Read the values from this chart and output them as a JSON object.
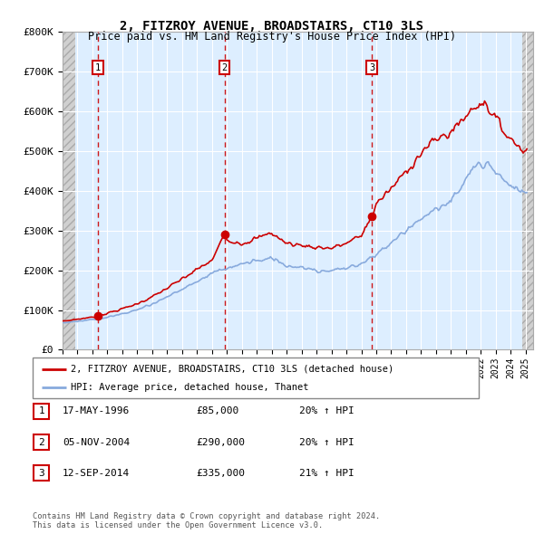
{
  "title": "2, FITZROY AVENUE, BROADSTAIRS, CT10 3LS",
  "subtitle": "Price paid vs. HM Land Registry's House Price Index (HPI)",
  "ylim": [
    0,
    800000
  ],
  "yticks": [
    0,
    100000,
    200000,
    300000,
    400000,
    500000,
    600000,
    700000,
    800000
  ],
  "ytick_labels": [
    "£0",
    "£100K",
    "£200K",
    "£300K",
    "£400K",
    "£500K",
    "£600K",
    "£700K",
    "£800K"
  ],
  "sale_year_floats": [
    1996.37,
    2004.84,
    2014.7
  ],
  "sale_prices": [
    85000,
    290000,
    335000
  ],
  "sale_labels": [
    "1",
    "2",
    "3"
  ],
  "sale_info": [
    {
      "label": "1",
      "date": "17-MAY-1996",
      "price": "£85,000",
      "hpi": "20% ↑ HPI"
    },
    {
      "label": "2",
      "date": "05-NOV-2004",
      "price": "£290,000",
      "hpi": "20% ↑ HPI"
    },
    {
      "label": "3",
      "date": "12-SEP-2014",
      "price": "£335,000",
      "hpi": "21% ↑ HPI"
    }
  ],
  "legend_line1": "2, FITZROY AVENUE, BROADSTAIRS, CT10 3LS (detached house)",
  "legend_line2": "HPI: Average price, detached house, Thanet",
  "legend_color1": "#cc0000",
  "legend_color2": "#88aadd",
  "footnote": "Contains HM Land Registry data © Crown copyright and database right 2024.\nThis data is licensed under the Open Government Licence v3.0.",
  "background_color": "#ffffff",
  "plot_bg_color": "#ddeeff",
  "grid_color": "#ffffff",
  "sale_line_color": "#cc0000",
  "hpi_line_color": "#88aadd",
  "hatch_bg": "#d0d0d0",
  "xlim_left": 1994.0,
  "xlim_right": 2025.5,
  "hatch_left_end": 1994.83,
  "hatch_right_start": 2024.75
}
